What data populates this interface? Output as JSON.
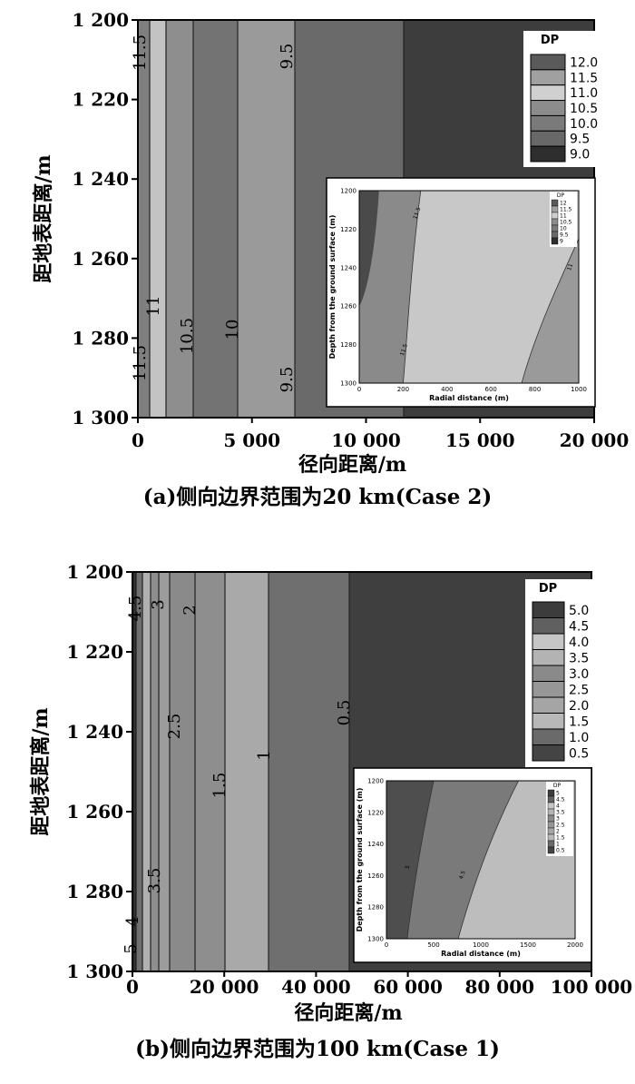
{
  "chart_data": [
    {
      "type": "heatmap",
      "panel": "a",
      "caption": "(a)侧向边界范围为20 km(Case 2)",
      "xlabel": "径向距离/m",
      "ylabel": "距地表距离/m",
      "xlim": [
        0,
        20000
      ],
      "ylim": [
        1200,
        1300
      ],
      "xticks": [
        "0",
        "5 000",
        "10 000",
        "15 000",
        "20 000"
      ],
      "yticks": [
        "1 200",
        "1 220",
        "1 240",
        "1 260",
        "1 280",
        "1 300"
      ],
      "legend": {
        "title": "DP",
        "levels": [
          "12.0",
          "11.5",
          "11.0",
          "10.5",
          "10.0",
          "9.5",
          "9.0"
        ],
        "position": "top-right"
      },
      "contour_labels": [
        "11.5",
        "9.5",
        "11",
        "10.5",
        "10",
        "11.5",
        "9.5"
      ],
      "inset": {
        "xlabel": "Radial distance (m)",
        "ylabel": "Depth from the ground surface (m)",
        "xticks": [
          "0",
          "200",
          "400",
          "600",
          "800",
          "1000"
        ],
        "yticks": [
          "1200",
          "1220",
          "1240",
          "1260",
          "1280",
          "1300"
        ],
        "legend": {
          "title": "DP",
          "levels": [
            "12",
            "11.5",
            "11",
            "10.5",
            "10",
            "9.5",
            "9"
          ]
        },
        "contour_labels": [
          "11.5",
          "11",
          "11.5"
        ]
      }
    },
    {
      "type": "heatmap",
      "panel": "b",
      "caption": "(b)侧向边界范围为100 km(Case 1)",
      "xlabel": "径向距离/m",
      "ylabel": "距地表距离/m",
      "xlim": [
        0,
        100000
      ],
      "ylim": [
        1200,
        1300
      ],
      "xticks": [
        "0",
        "20 000",
        "40 000",
        "60 000",
        "80 000",
        "100 000"
      ],
      "yticks": [
        "1 200",
        "1 220",
        "1 240",
        "1 260",
        "1 280",
        "1 300"
      ],
      "legend": {
        "title": "DP",
        "levels": [
          "5.0",
          "4.5",
          "4.0",
          "3.5",
          "3.0",
          "2.5",
          "2.0",
          "1.5",
          "1.0",
          "0.5"
        ],
        "position": "top-right"
      },
      "contour_labels": [
        "4.5",
        "3",
        "2",
        "2.5",
        "0.5",
        "1",
        "1.5",
        "3.5",
        "4",
        "5"
      ],
      "inset": {
        "xlabel": "Radial distance (m)",
        "ylabel": "Depth from the ground surface (m)",
        "xticks": [
          "0",
          "500",
          "1000",
          "1500",
          "2000"
        ],
        "yticks": [
          "1200",
          "1220",
          "1240",
          "1260",
          "1280",
          "1300"
        ],
        "legend": {
          "title": "DP",
          "levels": [
            "5",
            "4.5",
            "4",
            "3.5",
            "3",
            "2.5",
            "2",
            "1.5",
            "1",
            "0.5"
          ]
        },
        "contour_labels": [
          "5",
          "4.5"
        ]
      }
    }
  ]
}
